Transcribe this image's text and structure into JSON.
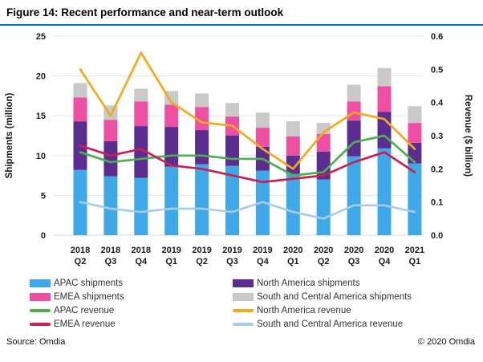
{
  "figure": {
    "title": "Figure 14: Recent performance and near-term outlook",
    "source": "Source: Omdia",
    "copyright": "© 2020 Omdia"
  },
  "colors": {
    "accent_rule": "#0070C6",
    "apac_shipments": "#3EA8E8",
    "na_shipments": "#5C2D91",
    "emea_shipments": "#EE4FA3",
    "sca_shipments": "#C9C9C9",
    "apac_revenue": "#4CAF50",
    "na_revenue": "#F5A81C",
    "emea_revenue": "#C92050",
    "sca_revenue": "#A8CBED",
    "gridline": "#E3E3E3",
    "axis_text": "#1A1A1A"
  },
  "chart_data": {
    "type": "bar",
    "subtype": "stacked-bars-with-lines",
    "categories": [
      "2018 Q2",
      "2018 Q3",
      "2018 Q4",
      "2019 Q1",
      "2019 Q2",
      "2019 Q3",
      "2019 Q4",
      "2020 Q1",
      "2020 Q2",
      "2020 Q3",
      "2020 Q4",
      "2021 Q1"
    ],
    "bar_series": [
      {
        "name": "APAC shipments",
        "color_key": "apac_shipments",
        "values": [
          8.2,
          7.4,
          7.2,
          8.6,
          8.9,
          8.7,
          8.1,
          7.7,
          7.0,
          9.9,
          10.9,
          9.0
        ]
      },
      {
        "name": "North America shipments",
        "color_key": "na_shipments",
        "values": [
          6.1,
          4.4,
          6.5,
          5.0,
          4.3,
          3.8,
          3.0,
          2.3,
          3.5,
          4.5,
          4.6,
          2.6
        ]
      },
      {
        "name": "EMEA shipments",
        "color_key": "emea_shipments",
        "values": [
          3.0,
          2.7,
          3.1,
          2.8,
          2.9,
          2.4,
          2.4,
          2.4,
          2.2,
          2.4,
          3.2,
          2.5
        ]
      },
      {
        "name": "South and Central America shipments",
        "color_key": "sca_shipments",
        "values": [
          1.8,
          1.8,
          1.6,
          1.7,
          1.7,
          1.7,
          1.9,
          1.9,
          1.4,
          2.1,
          2.3,
          2.1
        ]
      }
    ],
    "line_series": [
      {
        "name": "South and Central America revenue",
        "color_key": "sca_revenue",
        "values": [
          0.1,
          0.08,
          0.07,
          0.08,
          0.08,
          0.07,
          0.1,
          0.07,
          0.05,
          0.09,
          0.09,
          0.07
        ]
      },
      {
        "name": "APAC revenue",
        "color_key": "apac_revenue",
        "values": [
          0.25,
          0.22,
          0.23,
          0.24,
          0.24,
          0.23,
          0.23,
          0.18,
          0.19,
          0.28,
          0.3,
          0.22
        ]
      },
      {
        "name": "EMEA revenue",
        "color_key": "emea_revenue",
        "values": [
          0.27,
          0.24,
          0.26,
          0.21,
          0.2,
          0.18,
          0.16,
          0.17,
          0.18,
          0.22,
          0.25,
          0.19
        ]
      },
      {
        "name": "North America revenue",
        "color_key": "na_revenue",
        "values": [
          0.5,
          0.36,
          0.55,
          0.4,
          0.34,
          0.33,
          0.26,
          0.2,
          0.31,
          0.37,
          0.35,
          0.26
        ]
      }
    ],
    "left_axis": {
      "label": "Shipments (million)",
      "ticks": [
        0,
        5,
        10,
        15,
        20,
        25
      ],
      "min": 0,
      "max": 25
    },
    "right_axis": {
      "label": "Revenue ($ billion)",
      "ticks": [
        0.0,
        0.1,
        0.2,
        0.3,
        0.4,
        0.5,
        0.6
      ],
      "min": 0,
      "max": 0.6
    },
    "grid": "horizontal",
    "legend_position": "bottom"
  },
  "legend": {
    "items": [
      {
        "key": "legend-apac-shipments",
        "label": "APAC shipments",
        "type": "bar",
        "color_key": "apac_shipments"
      },
      {
        "key": "legend-na-shipments",
        "label": "North America shipments",
        "type": "bar",
        "color_key": "na_shipments"
      },
      {
        "key": "legend-emea-shipments",
        "label": "EMEA shipments",
        "type": "bar",
        "color_key": "emea_shipments"
      },
      {
        "key": "legend-sca-shipments",
        "label": "South and Central America shipments",
        "type": "bar",
        "color_key": "sca_shipments"
      },
      {
        "key": "legend-apac-revenue",
        "label": "APAC revenue",
        "type": "line",
        "color_key": "apac_revenue"
      },
      {
        "key": "legend-na-revenue",
        "label": "North America revenue",
        "type": "line",
        "color_key": "na_revenue"
      },
      {
        "key": "legend-emea-revenue",
        "label": "EMEA revenue",
        "type": "line",
        "color_key": "emea_revenue"
      },
      {
        "key": "legend-sca-revenue",
        "label": "South and Central America revenue",
        "type": "line",
        "color_key": "sca_revenue"
      }
    ]
  }
}
